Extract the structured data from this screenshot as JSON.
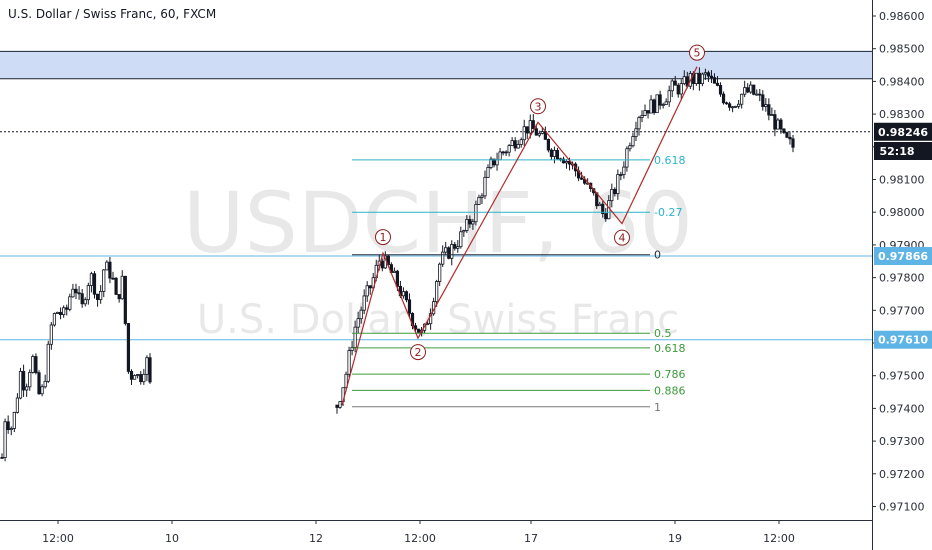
{
  "header": {
    "title": "U.S. Dollar / Swiss Franc, 60, FXCM"
  },
  "watermark": {
    "symbol": "USDCHF, 60",
    "name": "U.S. Dollar / Swiss Franc"
  },
  "price_labels": {
    "current": "0.98246",
    "countdown": "52:18",
    "line_upper": "0.97866",
    "line_lower": "0.97610"
  },
  "colors": {
    "background": "#ffffff",
    "candle": "#131722",
    "resistance_zone": "#cfdcf5",
    "horizontal_line": "#5fb4e6",
    "wave_line": "#b22a2a",
    "fib_upper": "#2bb3c9",
    "fib_lower": "#3c9a3c",
    "fib_base": "#777777"
  },
  "chart_data": {
    "type": "candlestick",
    "symbol": "USDCHF",
    "interval": "60",
    "source": "FXCM",
    "ylim": [
      0.97085,
      0.98645
    ],
    "y_ticks": [
      "0.97100",
      "0.97200",
      "0.97300",
      "0.97400",
      "0.97500",
      "0.97600",
      "0.97700",
      "0.97800",
      "0.97900",
      "0.98000",
      "0.98100",
      "0.98200",
      "0.98300",
      "0.98400",
      "0.98500",
      "0.98600"
    ],
    "x_ticks": [
      "12:00",
      "10",
      "12:00",
      "12",
      "12:00",
      "17",
      "12:00",
      "19",
      "12:00"
    ],
    "resistance_zone": {
      "low": 0.98408,
      "high": 0.98492
    },
    "horizontal_lines": [
      0.97866,
      0.9761
    ],
    "current_price": 0.98246,
    "elliott_waves": [
      {
        "label": "1",
        "price": 0.97875
      },
      {
        "label": "2",
        "price": 0.97615
      },
      {
        "label": "3",
        "price": 0.98275
      },
      {
        "label": "4",
        "price": 0.97965
      },
      {
        "label": "5",
        "price": 0.98445
      }
    ],
    "fib_upper": [
      {
        "label": "0.618",
        "price": 0.9816
      },
      {
        "label": "-0.27",
        "price": 0.98
      },
      {
        "label": "0",
        "price": 0.9787
      }
    ],
    "fib_lower": [
      {
        "label": "0.5",
        "price": 0.9763
      },
      {
        "label": "0.618",
        "price": 0.97585
      },
      {
        "label": "0.786",
        "price": 0.97505
      },
      {
        "label": "0.886",
        "price": 0.97455
      },
      {
        "label": "1",
        "price": 0.97405
      }
    ],
    "approx_close_path": [
      [
        0.9725,
        0.974,
        0.9733,
        0.9736,
        0.9744,
        0.9752,
        0.9746,
        0.9751,
        0.9756,
        0.9748,
        0.9743,
        0.9747,
        0.9756,
        0.9765,
        0.9769,
        0.977,
        0.9768,
        0.977,
        0.9775,
        0.9779,
        0.9774,
        0.977,
        0.9776,
        0.978,
        0.978,
        0.9773,
        0.9776,
        0.9784,
        0.9782,
        0.9781,
        0.9773,
        0.9776,
        0.978,
        0.9752,
        0.975,
        0.9752,
        0.9749,
        0.9751,
        0.9756,
        0.9747
      ],
      [
        0.9741,
        0.975,
        0.9764,
        0.9772,
        0.9778,
        0.9786,
        0.9783,
        0.9778,
        0.9772,
        0.9766,
        0.9762,
        0.9772,
        0.9785,
        0.9788,
        0.9791,
        0.9795,
        0.98,
        0.9808,
        0.9815,
        0.9818,
        0.982,
        0.9823,
        0.9826,
        0.9825,
        0.9822,
        0.9819,
        0.9818,
        0.9815,
        0.9812,
        0.9808,
        0.9804,
        0.9799,
        0.9805,
        0.9812,
        0.9822,
        0.983,
        0.9832,
        0.9833,
        0.9835,
        0.9838,
        0.9838,
        0.9841,
        0.984,
        0.9842,
        0.9838,
        0.9835,
        0.9833,
        0.9836,
        0.9837,
        0.9835,
        0.9831,
        0.9827,
        0.9822,
        0.982
      ]
    ]
  }
}
